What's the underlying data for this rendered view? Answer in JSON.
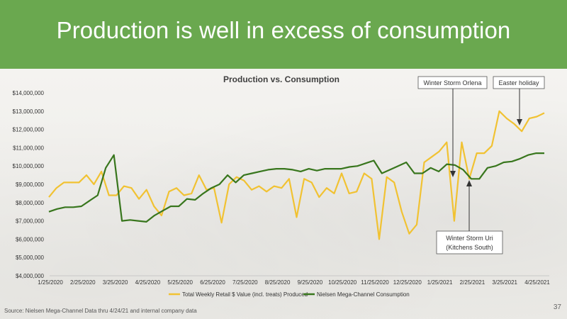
{
  "slide": {
    "title": "Production is well in excess of consumption",
    "source": "Source: Nielsen Mega-Channel Data thru 4/24/21 and internal company data",
    "page_number": "37"
  },
  "colors": {
    "banner": "#6aa84f",
    "produced": "#f1c232",
    "consumption": "#38761d"
  },
  "chart_data": {
    "type": "line",
    "title": "Production vs. Consumption",
    "ylim": [
      4000000,
      14000000
    ],
    "y_ticks": [
      "$4,000,000",
      "$5,000,000",
      "$6,000,000",
      "$7,000,000",
      "$8,000,000",
      "$9,000,000",
      "$10,000,000",
      "$11,000,000",
      "$12,000,000",
      "$13,000,000",
      "$14,000,000"
    ],
    "x_ticks": [
      "1/25/2020",
      "2/25/2020",
      "3/25/2020",
      "4/25/2020",
      "5/25/2020",
      "6/25/2020",
      "7/25/2020",
      "8/25/2020",
      "9/25/2020",
      "10/25/2020",
      "11/25/2020",
      "12/25/2020",
      "1/25/2021",
      "2/25/2021",
      "3/25/2021",
      "4/25/2021"
    ],
    "legend": "bottom",
    "series": [
      {
        "name": "Total Weekly Retail $ Value (incl. treats) Produced",
        "values": [
          8300000,
          8800000,
          9100000,
          9100000,
          9100000,
          9500000,
          9000000,
          9700000,
          8400000,
          8400000,
          8900000,
          8800000,
          8200000,
          8700000,
          7800000,
          7300000,
          8600000,
          8800000,
          8400000,
          8500000,
          9500000,
          8700000,
          8800000,
          6900000,
          9000000,
          9400000,
          9200000,
          8700000,
          8900000,
          8600000,
          8900000,
          8800000,
          9300000,
          7200000,
          9300000,
          9100000,
          8300000,
          8800000,
          8500000,
          9600000,
          8500000,
          8600000,
          9600000,
          9300000,
          6000000,
          9400000,
          9100000,
          7500000,
          6300000,
          6800000,
          10200000,
          10500000,
          10800000,
          11300000,
          7000000,
          11300000,
          9300000,
          10700000,
          10700000,
          11100000,
          13000000,
          12600000,
          12300000,
          11900000,
          12600000,
          12700000,
          12900000
        ]
      },
      {
        "name": "Nielsen Mega-Channel Consumption",
        "values": [
          7500000,
          7650000,
          7750000,
          7750000,
          7800000,
          8100000,
          8400000,
          9900000,
          10600000,
          7000000,
          7050000,
          7000000,
          6950000,
          7300000,
          7550000,
          7800000,
          7800000,
          8200000,
          8150000,
          8500000,
          8800000,
          9000000,
          9500000,
          9100000,
          9500000,
          9600000,
          9700000,
          9800000,
          9850000,
          9850000,
          9800000,
          9700000,
          9850000,
          9750000,
          9850000,
          9850000,
          9850000,
          9950000,
          10000000,
          10150000,
          10300000,
          9600000,
          9800000,
          10000000,
          10200000,
          9600000,
          9600000,
          9900000,
          9700000,
          10100000,
          10050000,
          9800000,
          9300000,
          9300000,
          9900000,
          10000000,
          10200000,
          10250000,
          10400000,
          10600000,
          10700000,
          10700000
        ]
      }
    ],
    "annotations": [
      {
        "id": "orlena",
        "text": [
          "Winter Storm Orlena"
        ]
      },
      {
        "id": "easter",
        "text": [
          "Easter holiday"
        ]
      },
      {
        "id": "uri",
        "text": [
          "Winter Storm Uri",
          "(Kitchens South)"
        ]
      }
    ]
  }
}
